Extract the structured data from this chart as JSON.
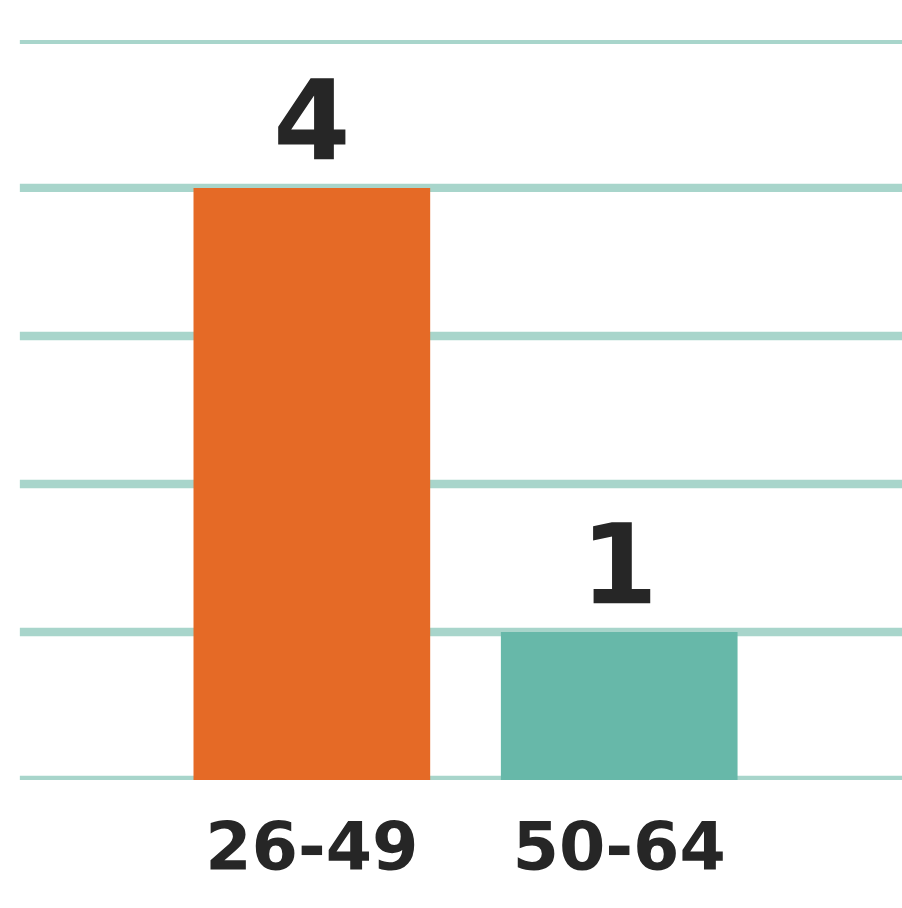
{
  "chart_data": {
    "type": "bar",
    "categories": [
      "26-49",
      "50-64"
    ],
    "values": [
      4,
      1
    ],
    "colors": [
      "#e56a26",
      "#67b8a9"
    ],
    "ylim": [
      0,
      5
    ],
    "yticks": [
      {
        "value": 0,
        "label": null
      },
      {
        "value": 1,
        "label": null
      },
      {
        "value": 2,
        "label": null
      },
      {
        "value": 3,
        "label": null
      },
      {
        "value": 4,
        "label": null
      },
      {
        "value": 5,
        "label": null
      }
    ],
    "grid": "y",
    "data_labels": true,
    "tick_labels": "x",
    "legend": false
  }
}
